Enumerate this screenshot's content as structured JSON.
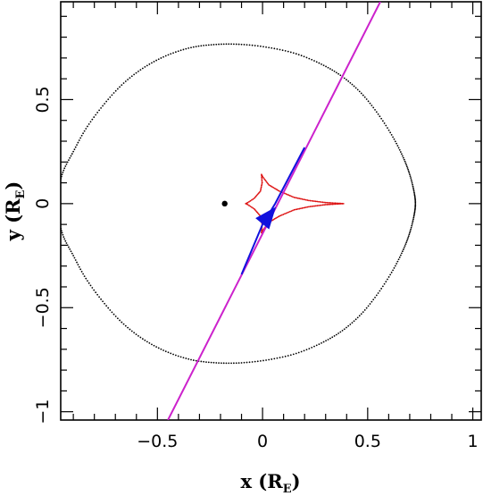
{
  "chart_data": {
    "type": "scatter",
    "title": "",
    "xlabel": {
      "main": "x (R",
      "sub": "E",
      "close": ")"
    },
    "ylabel": {
      "main": "y (R",
      "sub": "E",
      "close": ")"
    },
    "xlim": [
      -0.96,
      1.04
    ],
    "ylim": [
      -1.04,
      0.97
    ],
    "x_major_ticks": [
      -0.5,
      0,
      0.5,
      1
    ],
    "x_tick_labels": [
      "−0.5",
      "0",
      "0.5",
      "1"
    ],
    "y_major_ticks": [
      -1,
      -0.5,
      0,
      0.5
    ],
    "y_tick_labels": [
      "−1",
      "−0.5",
      "0",
      "0.5"
    ],
    "minor_tick_step": 0.1,
    "grid": false,
    "legend": "none",
    "point_mass": {
      "x": -0.18,
      "y": 0.0,
      "color": "#000000"
    },
    "critical_curve": {
      "color": "#000000",
      "style": "dotted",
      "points": [
        [
          0.727,
          0.0
        ],
        [
          0.72,
          0.06
        ],
        [
          0.7,
          0.14
        ],
        [
          0.67,
          0.22
        ],
        [
          0.62,
          0.32
        ],
        [
          0.55,
          0.43
        ],
        [
          0.47,
          0.53
        ],
        [
          0.38,
          0.61
        ],
        [
          0.28,
          0.67
        ],
        [
          0.16,
          0.72
        ],
        [
          0.03,
          0.75
        ],
        [
          -0.1,
          0.765
        ],
        [
          -0.22,
          0.765
        ],
        [
          -0.34,
          0.75
        ],
        [
          -0.46,
          0.71
        ],
        [
          -0.57,
          0.65
        ],
        [
          -0.67,
          0.57
        ],
        [
          -0.76,
          0.47
        ],
        [
          -0.84,
          0.36
        ],
        [
          -0.9,
          0.25
        ],
        [
          -0.95,
          0.15
        ],
        [
          -0.97,
          0.05
        ],
        [
          -0.97,
          -0.05
        ],
        [
          -0.95,
          -0.15
        ],
        [
          -0.9,
          -0.25
        ],
        [
          -0.84,
          -0.36
        ],
        [
          -0.76,
          -0.47
        ],
        [
          -0.67,
          -0.57
        ],
        [
          -0.57,
          -0.65
        ],
        [
          -0.46,
          -0.71
        ],
        [
          -0.34,
          -0.75
        ],
        [
          -0.22,
          -0.765
        ],
        [
          -0.1,
          -0.765
        ],
        [
          0.03,
          -0.75
        ],
        [
          0.16,
          -0.72
        ],
        [
          0.28,
          -0.67
        ],
        [
          0.38,
          -0.61
        ],
        [
          0.47,
          -0.53
        ],
        [
          0.55,
          -0.43
        ],
        [
          0.62,
          -0.32
        ],
        [
          0.67,
          -0.22
        ],
        [
          0.7,
          -0.14
        ],
        [
          0.72,
          -0.06
        ],
        [
          0.727,
          0.0
        ]
      ]
    },
    "caustic": {
      "color": "#dd1111",
      "points": [
        [
          0.385,
          0.0
        ],
        [
          0.3,
          0.005
        ],
        [
          0.22,
          0.015
        ],
        [
          0.15,
          0.03
        ],
        [
          0.08,
          0.06
        ],
        [
          0.03,
          0.09
        ],
        [
          0.0,
          0.13
        ],
        [
          -0.005,
          0.14
        ],
        [
          -0.002,
          0.1
        ],
        [
          -0.01,
          0.06
        ],
        [
          -0.04,
          0.025
        ],
        [
          -0.07,
          0.005
        ],
        [
          -0.08,
          0.0
        ],
        [
          -0.07,
          -0.005
        ],
        [
          -0.04,
          -0.025
        ],
        [
          -0.01,
          -0.06
        ],
        [
          -0.002,
          -0.1
        ],
        [
          -0.005,
          -0.14
        ],
        [
          0.0,
          -0.13
        ],
        [
          0.03,
          -0.09
        ],
        [
          0.08,
          -0.06
        ],
        [
          0.15,
          -0.03
        ],
        [
          0.22,
          -0.015
        ],
        [
          0.3,
          -0.005
        ],
        [
          0.385,
          0.0
        ]
      ]
    },
    "source_trajectory": {
      "color": "#cc22cc",
      "x": [
        -0.45,
        0.56
      ],
      "y": [
        -1.04,
        0.97
      ]
    },
    "image_trajectory": {
      "color": "#1111dd",
      "x": [
        -0.1,
        0.0,
        0.03,
        0.06,
        0.2
      ],
      "y": [
        -0.34,
        -0.1,
        -0.05,
        0.0,
        0.27
      ]
    },
    "image_blob": {
      "color": "#1111dd",
      "points": [
        [
          -0.03,
          -0.07
        ],
        [
          0.06,
          -0.02
        ],
        [
          0.03,
          -0.12
        ]
      ]
    }
  }
}
